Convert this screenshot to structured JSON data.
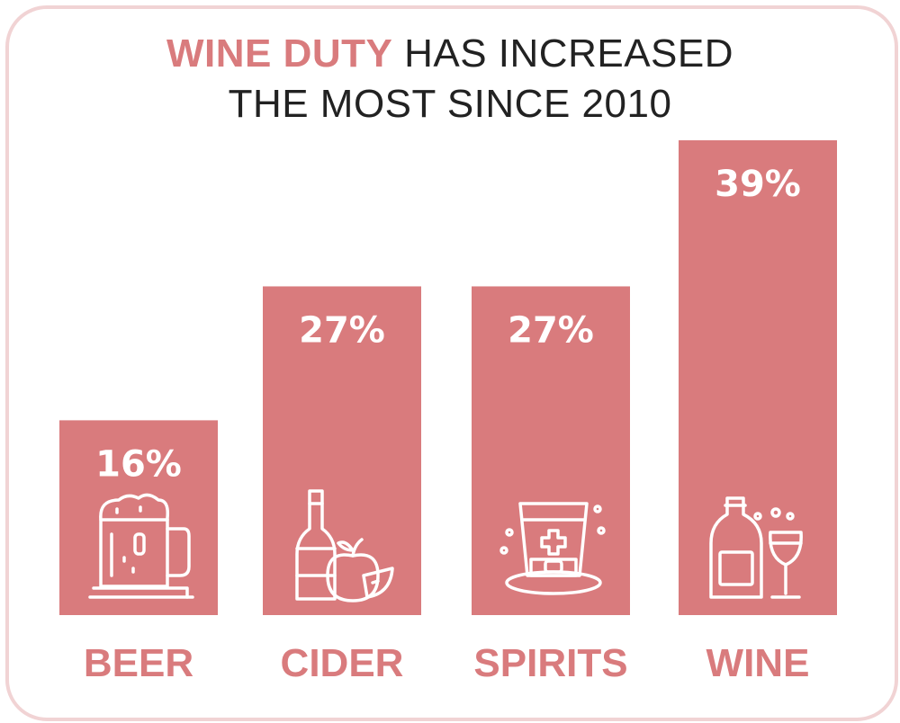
{
  "title": {
    "highlight": "WINE DUTY",
    "line1_rest": " HAS INCREASED",
    "line2": "THE MOST SINCE 2010"
  },
  "colors": {
    "bar": "#d97b7d",
    "frame": "#f1d3d4",
    "title_text": "#222222"
  },
  "chart_data": {
    "type": "bar",
    "categories": [
      "BEER",
      "CIDER",
      "SPIRITS",
      "WINE"
    ],
    "values": [
      16,
      27,
      27,
      39
    ],
    "value_labels": [
      "16%",
      "27%",
      "27%",
      "39%"
    ],
    "icons": [
      "beer-mug-icon",
      "cider-bottle-apple-icon",
      "spirits-glass-icon",
      "wine-bottle-glass-icon"
    ],
    "ylim": [
      0,
      39
    ],
    "grid": false
  }
}
